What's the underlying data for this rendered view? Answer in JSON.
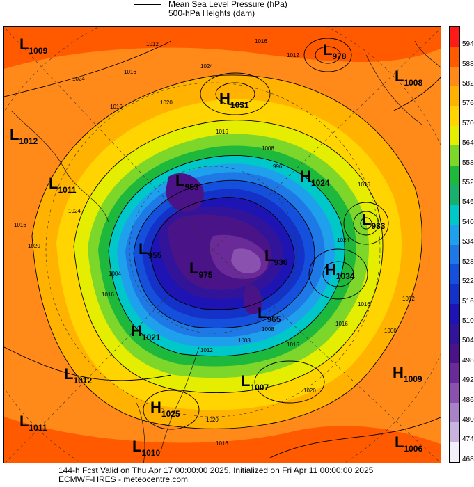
{
  "header": {
    "line1": "Mean Sea Level Pressure (hPa)",
    "line2": "500-hPa Heights (dam)"
  },
  "colorbar": {
    "labels": [
      "594",
      "588",
      "582",
      "576",
      "570",
      "564",
      "558",
      "552",
      "546",
      "540",
      "534",
      "528",
      "522",
      "516",
      "510",
      "504",
      "498",
      "492",
      "486",
      "480",
      "474",
      "468"
    ],
    "colors": [
      "#ff1a1a",
      "#ff5a00",
      "#ff8a1a",
      "#ffb300",
      "#ffd400",
      "#e5ee00",
      "#7dd62a",
      "#1eb83c",
      "#18b06c",
      "#00c8c8",
      "#1ea0ec",
      "#1e78e6",
      "#1450dc",
      "#1432c8",
      "#1e14b4",
      "#32149a",
      "#4a1488",
      "#6a2a98",
      "#8a52ae",
      "#a882c6",
      "#c8b4de",
      "#f4f0fa"
    ]
  },
  "pressure_centers": [
    {
      "type": "L",
      "value": "1009"
    },
    {
      "type": "L",
      "value": "978"
    },
    {
      "type": "L",
      "value": "1008"
    },
    {
      "type": "H",
      "value": "1031"
    },
    {
      "type": "L",
      "value": "1012"
    },
    {
      "type": "L",
      "value": "1011"
    },
    {
      "type": "L",
      "value": "953"
    },
    {
      "type": "H",
      "value": "1024"
    },
    {
      "type": "L",
      "value": "983"
    },
    {
      "type": "L",
      "value": "955"
    },
    {
      "type": "L",
      "value": "975"
    },
    {
      "type": "L",
      "value": "936"
    },
    {
      "type": "H",
      "value": "1034"
    },
    {
      "type": "L",
      "value": "965"
    },
    {
      "type": "H",
      "value": "1021"
    },
    {
      "type": "L",
      "value": "1012"
    },
    {
      "type": "L",
      "value": "1007"
    },
    {
      "type": "H",
      "value": "1009"
    },
    {
      "type": "H",
      "value": "1025"
    },
    {
      "type": "L",
      "value": "1011"
    },
    {
      "type": "L",
      "value": "1010"
    },
    {
      "type": "L",
      "value": "1006"
    }
  ],
  "contour_labels": [
    "1012",
    "1016",
    "1024",
    "1016",
    "1020",
    "1024",
    "1016",
    "1012",
    "1008",
    "996",
    "1016",
    "1024",
    "1016",
    "1020",
    "1016",
    "1024",
    "1016",
    "1008",
    "1004",
    "1012",
    "1016",
    "1008",
    "1016",
    "1000",
    "1016",
    "1020",
    "1020",
    "1012",
    "1016"
  ],
  "footer": {
    "line1": "144-h Fcst Valid on Thu Apr 17 00:00:00 2025, Initialized on Fri Apr 11 00:00:00 2025",
    "line2": "ECMWF-HRES  - meteocentre.com"
  }
}
